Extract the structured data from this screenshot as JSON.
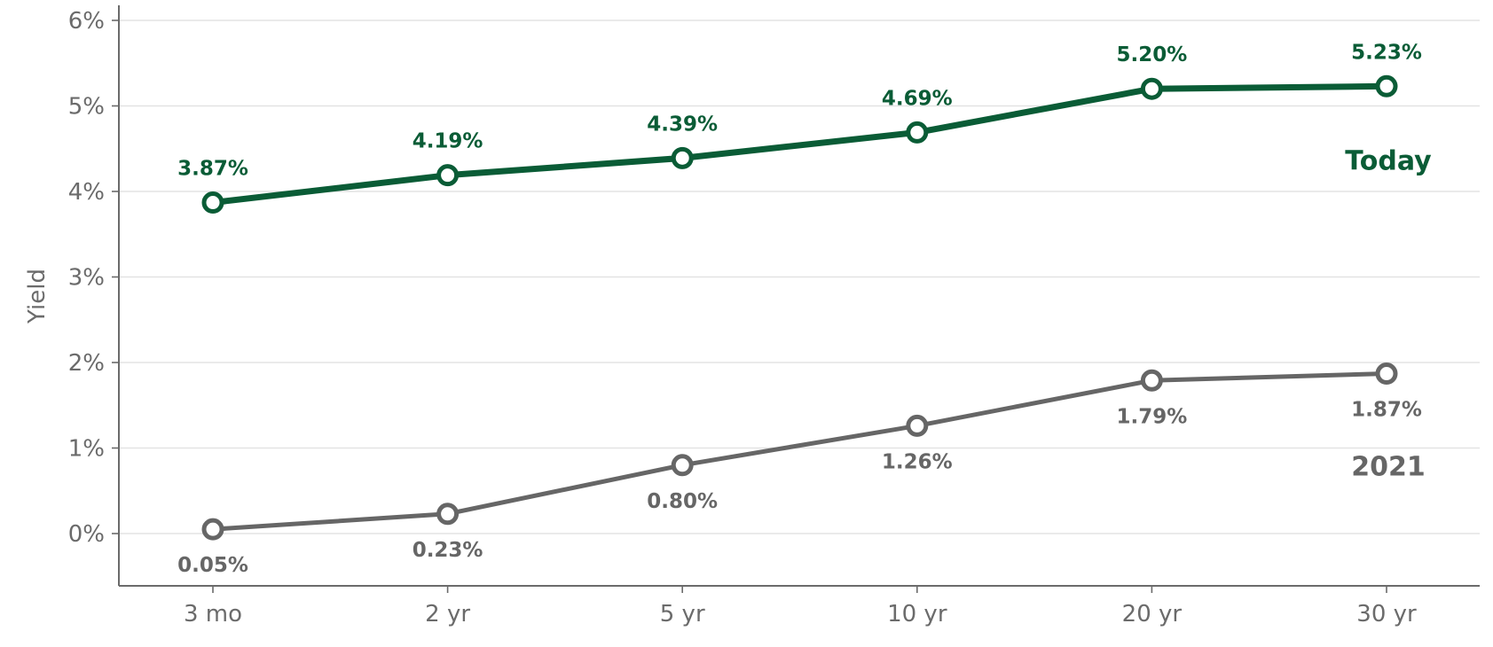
{
  "chart_data": {
    "type": "line",
    "title": "",
    "xlabel": "",
    "ylabel": "Yield",
    "categories": [
      "3 mo",
      "2 yr",
      "5 yr",
      "10 yr",
      "20 yr",
      "30 yr"
    ],
    "ylim": [
      -0.6,
      6.2
    ],
    "yticks": [
      0,
      1,
      2,
      3,
      4,
      5,
      6
    ],
    "ytick_labels": [
      "0%",
      "1%",
      "2%",
      "3%",
      "4%",
      "5%",
      "6%"
    ],
    "grid": "horizontal",
    "series": [
      {
        "name": "Today",
        "color": "#0a5c36",
        "values": [
          3.87,
          4.19,
          4.39,
          4.69,
          5.2,
          5.23
        ],
        "labels": [
          "3.87%",
          "4.19%",
          "4.39%",
          "4.69%",
          "5.20%",
          "5.23%"
        ],
        "label_position": "above"
      },
      {
        "name": "2021",
        "color": "#666666",
        "values": [
          0.05,
          0.23,
          0.8,
          1.26,
          1.79,
          1.87
        ],
        "labels": [
          "0.05%",
          "0.23%",
          "0.80%",
          "1.26%",
          "1.79%",
          "1.87%"
        ],
        "label_position": "below"
      }
    ]
  }
}
